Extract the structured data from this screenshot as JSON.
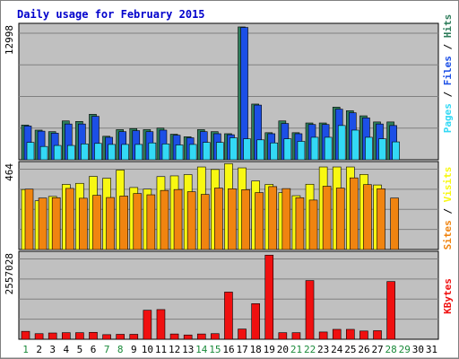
{
  "chart_data": {
    "type": "bar",
    "title": "Daily usage for February 2015",
    "days": [
      "1",
      "2",
      "3",
      "4",
      "5",
      "6",
      "7",
      "8",
      "9",
      "10",
      "11",
      "12",
      "13",
      "14",
      "15",
      "16",
      "17",
      "18",
      "19",
      "20",
      "21",
      "22",
      "23",
      "24",
      "25",
      "26",
      "27",
      "28",
      "29",
      "30",
      "31"
    ],
    "weekend_days": [
      "1",
      "7",
      "8",
      "14",
      "15",
      "21",
      "22",
      "28",
      "29"
    ],
    "panels": [
      {
        "id": "hits-files-pages",
        "max_label": "12998",
        "ymax": 12998,
        "series": [
          {
            "name": "Hits",
            "color": "#2e7d5b",
            "values": [
              3400,
              2900,
              2750,
              3800,
              3750,
              4450,
              2300,
              2950,
              3050,
              2950,
              3100,
              2500,
              2250,
              2950,
              2750,
              2550,
              13000,
              5450,
              2650,
              3800,
              2650,
              3600,
              3600,
              5150,
              4800,
              4300,
              3700,
              3700,
              null,
              null,
              null
            ]
          },
          {
            "name": "Files",
            "color": "#1c4fe6",
            "values": [
              3300,
              2800,
              2600,
              3500,
              3500,
              4250,
              2200,
              2750,
              2850,
              2750,
              2900,
              2400,
              2150,
              2750,
              2550,
              2450,
              12950,
              5350,
              2550,
              3550,
              2550,
              3450,
              3450,
              4950,
              4600,
              4100,
              3500,
              3350,
              null,
              null,
              null
            ]
          },
          {
            "name": "Pages",
            "color": "#33d9f5",
            "values": [
              1700,
              1300,
              1400,
              1400,
              1550,
              1600,
              1500,
              1500,
              1500,
              1650,
              1550,
              1450,
              1500,
              1700,
              1700,
              2150,
              2050,
              1950,
              1650,
              2050,
              1800,
              2200,
              2200,
              3350,
              2900,
              2200,
              2050,
              1750,
              null,
              null,
              null
            ]
          }
        ]
      },
      {
        "id": "visits-sites",
        "max_label": "464",
        "ymax": 464,
        "series": [
          {
            "name": "Visits",
            "color": "#f8f812",
            "values": [
              330,
              268,
              292,
              358,
              364,
              402,
              392,
              437,
              341,
              332,
              401,
              405,
              412,
              454,
              440,
              472,
              449,
              377,
              358,
              313,
              296,
              359,
              454,
              454,
              454,
              413,
              355,
              null,
              null,
              null,
              null
            ]
          },
          {
            "name": "Sites",
            "color": "#f08410",
            "values": [
              332,
              283,
              285,
              336,
              282,
              298,
              286,
              294,
              308,
              301,
              325,
              330,
              318,
              303,
              338,
              334,
              329,
              313,
              346,
              335,
              285,
              272,
              348,
              338,
              394,
              357,
              334,
              283,
              null,
              null,
              null
            ]
          }
        ]
      },
      {
        "id": "kbytes",
        "max_label": "2557028",
        "ymax": 2557028,
        "series": [
          {
            "name": "KBytes",
            "color": "#f01010",
            "values": [
              240000,
              170000,
              190000,
              200000,
              200000,
              210000,
              140000,
              150000,
              150000,
              880000,
              900000,
              160000,
              130000,
              160000,
              170000,
              1430000,
              310000,
              1080000,
              2550000,
              200000,
              200000,
              1780000,
              220000,
              300000,
              300000,
              250000,
              260000,
              1750000,
              null,
              null,
              null
            ]
          }
        ]
      }
    ],
    "right_labels": {
      "panel1": [
        {
          "text": "Pages",
          "color": "#33d9f5"
        },
        {
          "text": " / ",
          "color": "#000000"
        },
        {
          "text": "Files",
          "color": "#1c4fe6"
        },
        {
          "text": " / ",
          "color": "#000000"
        },
        {
          "text": "Hits",
          "color": "#2e7d5b"
        }
      ],
      "panel2": [
        {
          "text": "Sites",
          "color": "#f08410"
        },
        {
          "text": " / ",
          "color": "#000000"
        },
        {
          "text": "Visits",
          "color": "#f8f812"
        }
      ],
      "panel3": [
        {
          "text": "KBytes",
          "color": "#f01010"
        }
      ]
    },
    "colors": {
      "title": "#0000cc",
      "weekday_label": "#000000",
      "weekend_label": "#1a8a3a",
      "panel_bg": "#c0c0c0",
      "grid": "#808080"
    },
    "grid": true
  }
}
